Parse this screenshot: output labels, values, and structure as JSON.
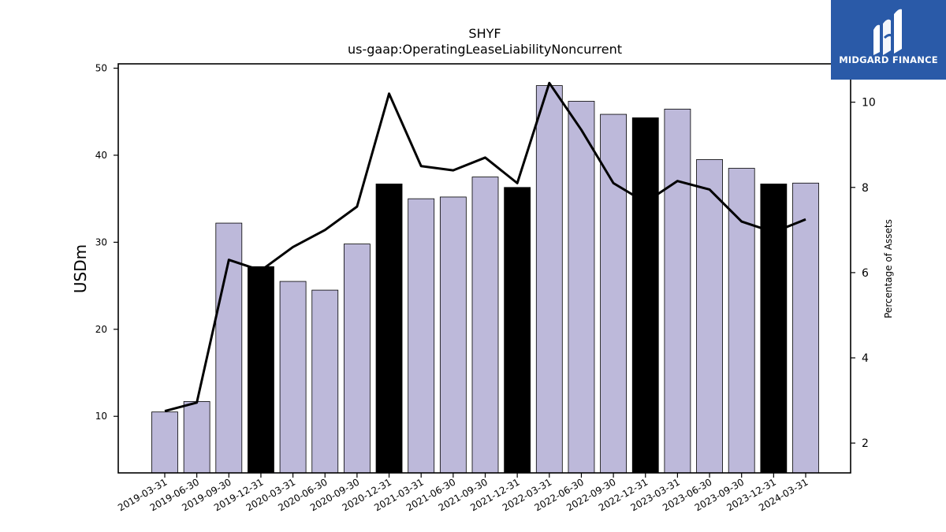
{
  "chart_data": {
    "type": "bar",
    "title": "SHYF",
    "subtitle": "us-gaap:OperatingLeaseLiabilityNoncurrent",
    "ylabel": "USDm",
    "y2label": "Percentage of Assets",
    "ylim": [
      3.5,
      50.5
    ],
    "y2lim": [
      1.3,
      10.9
    ],
    "yticks": [
      10,
      20,
      30,
      40,
      50
    ],
    "y2ticks": [
      2,
      4,
      6,
      8,
      10
    ],
    "grid": false,
    "categories": [
      "2019-03-31",
      "2019-06-30",
      "2019-09-30",
      "2019-12-31",
      "2020-03-31",
      "2020-06-30",
      "2020-09-30",
      "2020-12-31",
      "2021-03-31",
      "2021-06-30",
      "2021-09-30",
      "2021-12-31",
      "2022-03-31",
      "2022-06-30",
      "2022-09-30",
      "2022-12-31",
      "2023-03-31",
      "2023-06-30",
      "2023-09-30",
      "2023-12-31",
      "2024-03-31"
    ],
    "series": [
      {
        "kind": "bar",
        "axis": "left",
        "values": [
          10.5,
          11.7,
          32.2,
          27.2,
          25.5,
          24.5,
          29.8,
          36.7,
          35.0,
          35.2,
          37.5,
          36.3,
          48.0,
          46.2,
          44.7,
          44.3,
          45.3,
          39.5,
          38.5,
          36.7,
          36.8
        ],
        "highlight": [
          false,
          false,
          false,
          true,
          false,
          false,
          false,
          true,
          false,
          false,
          false,
          true,
          false,
          false,
          false,
          true,
          false,
          false,
          false,
          true,
          false
        ]
      },
      {
        "kind": "line",
        "axis": "right",
        "values": [
          2.75,
          2.95,
          6.3,
          6.05,
          6.6,
          7.0,
          7.55,
          10.2,
          8.5,
          8.4,
          8.7,
          8.1,
          10.45,
          9.35,
          8.1,
          7.65,
          8.15,
          7.95,
          7.2,
          6.95,
          7.25
        ]
      }
    ],
    "colors": {
      "bar": "#bdb9da",
      "bar_highlight": "#000000",
      "line": "#000000",
      "bar_edge": "#000000"
    }
  },
  "logo": {
    "text": "MIDGARD FINANCE",
    "color": "#2a5aa8"
  }
}
